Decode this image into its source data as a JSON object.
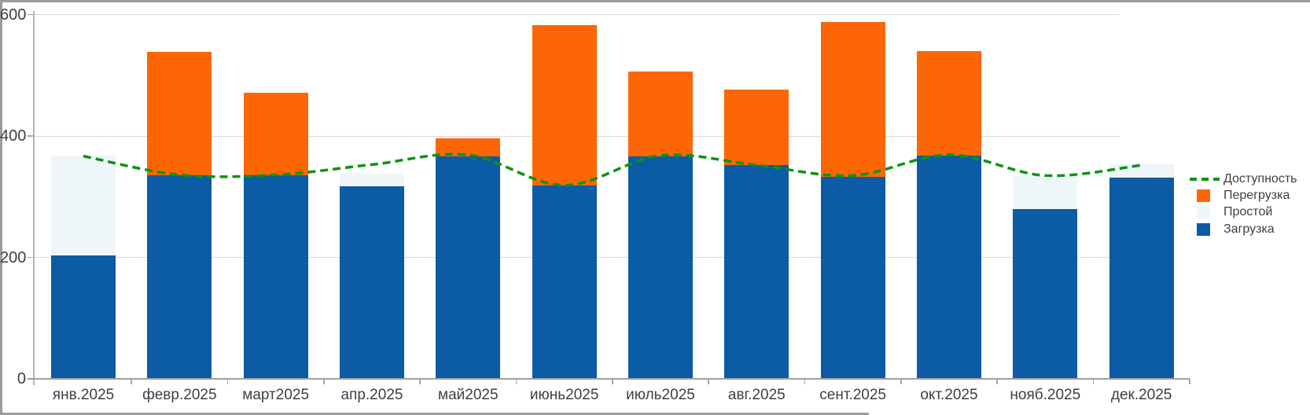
{
  "widget": {
    "background": "#ffffff",
    "border_color": "#9b9b9b",
    "axis_text_color": "#3f3f3f"
  },
  "chart_data": {
    "type": "bar",
    "variant": "stacked-bars-with-dashed-line-overlay",
    "title": "",
    "xlabel": "",
    "ylabel": "",
    "categories": [
      "янв.2025",
      "февр.2025",
      "март2025",
      "апр.2025",
      "май2025",
      "июнь2025",
      "июль2025",
      "авг.2025",
      "сент.2025",
      "окт.2025",
      "нояб.2025",
      "дек.2025"
    ],
    "bar_series": [
      {
        "name": "Загрузка",
        "color": "#0C5BA5",
        "values": [
          203,
          335,
          336,
          317,
          367,
          319,
          367,
          352,
          333,
          368,
          280,
          332
        ]
      },
      {
        "name": "Простой",
        "color": "#EEF6FA",
        "values": [
          165,
          0,
          0,
          22,
          0,
          0,
          0,
          0,
          0,
          0,
          54,
          21
        ]
      },
      {
        "name": "Перегрузка",
        "color": "#FC6604",
        "values": [
          0,
          204,
          135,
          0,
          29,
          264,
          139,
          125,
          255,
          172,
          0,
          0
        ]
      }
    ],
    "line_series": {
      "name": "Доступность",
      "color": "#0B9410",
      "style": "dashed",
      "values": [
        367,
        336,
        336,
        353,
        369,
        319,
        368,
        352,
        335,
        369,
        335,
        352
      ]
    },
    "stack_totals": [
      368,
      539,
      471,
      339,
      396,
      583,
      506,
      477,
      588,
      540,
      334,
      353
    ],
    "y_axis": {
      "min": 0,
      "max": 600,
      "ticks": [
        0,
        200,
        400,
        600
      ]
    },
    "grid": "horizontal",
    "legend": {
      "position": "right",
      "entries": [
        {
          "label": "Доступность",
          "swatch": "dashed-line",
          "color": "#0B9410"
        },
        {
          "label": "Перегрузка",
          "swatch": "box",
          "color": "#FC6604"
        },
        {
          "label": "Простой",
          "swatch": "box",
          "color": "#EEF6FA"
        },
        {
          "label": "Загрузка",
          "swatch": "box",
          "color": "#0C5BA5"
        }
      ]
    }
  }
}
